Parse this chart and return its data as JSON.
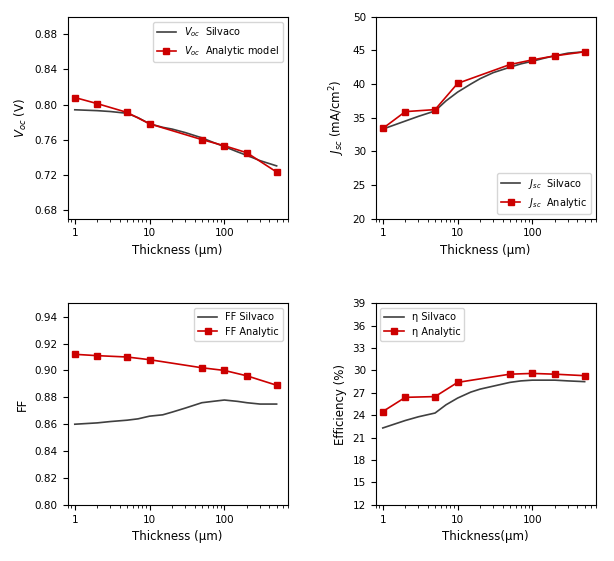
{
  "marker_x": [
    1,
    2,
    5,
    10,
    50,
    100,
    200,
    500
  ],
  "voc_silvaco_x": [
    1,
    2,
    3,
    5,
    7,
    10,
    15,
    20,
    30,
    50,
    70,
    100,
    150,
    200,
    300,
    500
  ],
  "voc_silvaco_y": [
    0.794,
    0.793,
    0.792,
    0.79,
    0.785,
    0.778,
    0.774,
    0.772,
    0.768,
    0.762,
    0.757,
    0.752,
    0.746,
    0.742,
    0.736,
    0.73
  ],
  "voc_analytic_x": [
    1,
    2,
    5,
    10,
    50,
    100,
    200,
    500
  ],
  "voc_analytic_y": [
    0.808,
    0.801,
    0.791,
    0.778,
    0.76,
    0.753,
    0.745,
    0.723
  ],
  "jsc_silvaco_x": [
    1,
    2,
    3,
    5,
    7,
    10,
    15,
    20,
    30,
    50,
    70,
    100,
    150,
    200,
    300,
    500
  ],
  "jsc_silvaco_y": [
    33.3,
    34.5,
    35.2,
    36.0,
    37.5,
    38.8,
    40.0,
    40.8,
    41.7,
    42.5,
    43.0,
    43.4,
    43.9,
    44.2,
    44.6,
    44.8
  ],
  "jsc_analytic_x": [
    1,
    2,
    5,
    10,
    50,
    100,
    200,
    500
  ],
  "jsc_analytic_y": [
    33.4,
    35.9,
    36.2,
    40.1,
    42.9,
    43.6,
    44.2,
    44.8
  ],
  "ff_silvaco_x": [
    1,
    2,
    3,
    5,
    7,
    10,
    15,
    20,
    30,
    50,
    70,
    100,
    150,
    200,
    300,
    500
  ],
  "ff_silvaco_y": [
    0.86,
    0.861,
    0.862,
    0.863,
    0.864,
    0.866,
    0.867,
    0.869,
    0.872,
    0.876,
    0.877,
    0.878,
    0.877,
    0.876,
    0.875,
    0.875
  ],
  "ff_analytic_x": [
    1,
    2,
    5,
    10,
    50,
    100,
    200,
    500
  ],
  "ff_analytic_y": [
    0.912,
    0.911,
    0.91,
    0.908,
    0.902,
    0.9,
    0.896,
    0.889
  ],
  "eta_silvaco_x": [
    1,
    2,
    3,
    5,
    7,
    10,
    15,
    20,
    30,
    50,
    70,
    100,
    150,
    200,
    300,
    500
  ],
  "eta_silvaco_y": [
    22.3,
    23.3,
    23.8,
    24.3,
    25.4,
    26.3,
    27.1,
    27.5,
    27.9,
    28.4,
    28.6,
    28.7,
    28.7,
    28.7,
    28.6,
    28.5
  ],
  "eta_analytic_x": [
    1,
    2,
    5,
    10,
    50,
    100,
    200,
    500
  ],
  "eta_analytic_y": [
    24.5,
    26.4,
    26.5,
    28.4,
    29.5,
    29.6,
    29.5,
    29.3
  ],
  "silvaco_color": "#404040",
  "analytic_color": "#cc0000",
  "line_width": 1.2,
  "marker": "s",
  "marker_size": 4,
  "voc_ylabel": "$V_{oc}$ (V)",
  "voc_ylim": [
    0.67,
    0.9
  ],
  "voc_yticks": [
    0.68,
    0.72,
    0.76,
    0.8,
    0.84,
    0.88
  ],
  "voc_legend1": "$V_{oc}$  Silvaco",
  "voc_legend2": "$V_{oc}$  Analytic model",
  "jsc_ylabel": "$J_{sc}$ (mA/cm$^2$)",
  "jsc_ylim": [
    20,
    50
  ],
  "jsc_yticks": [
    20,
    25,
    30,
    35,
    40,
    45,
    50
  ],
  "jsc_legend1": "$J_{sc}$  Silvaco",
  "jsc_legend2": "$J_{sc}$  Analytic",
  "ff_ylabel": "FF",
  "ff_ylim": [
    0.8,
    0.95
  ],
  "ff_yticks": [
    0.8,
    0.82,
    0.84,
    0.86,
    0.88,
    0.9,
    0.92,
    0.94
  ],
  "ff_legend1": "FF Silvaco",
  "ff_legend2": "FF Analytic",
  "eta_ylabel": "Efficiency (%)",
  "eta_ylim": [
    12,
    39
  ],
  "eta_yticks": [
    12,
    15,
    18,
    21,
    24,
    27,
    30,
    33,
    36,
    39
  ],
  "eta_legend1": "η Silvaco",
  "eta_legend2": "η Analytic",
  "xlabel": "Thickness (μm)",
  "xlabel_nospace": "Thickness(μm)",
  "xlim": [
    0.8,
    700
  ],
  "xticks": [
    1,
    10,
    100
  ]
}
